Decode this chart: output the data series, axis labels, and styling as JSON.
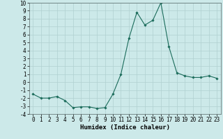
{
  "x": [
    0,
    1,
    2,
    3,
    4,
    5,
    6,
    7,
    8,
    9,
    10,
    11,
    12,
    13,
    14,
    15,
    16,
    17,
    18,
    19,
    20,
    21,
    22,
    23
  ],
  "y": [
    -1.5,
    -2.0,
    -2.0,
    -1.8,
    -2.3,
    -3.2,
    -3.1,
    -3.1,
    -3.3,
    -3.2,
    -1.5,
    1.0,
    5.5,
    8.8,
    7.2,
    7.8,
    10.0,
    4.5,
    1.2,
    0.8,
    0.6,
    0.6,
    0.8,
    0.5
  ],
  "xlabel": "Humidex (Indice chaleur)",
  "xlim": [
    -0.5,
    23.5
  ],
  "ylim": [
    -4,
    10
  ],
  "yticks": [
    -4,
    -3,
    -2,
    -1,
    0,
    1,
    2,
    3,
    4,
    5,
    6,
    7,
    8,
    9,
    10
  ],
  "xticks": [
    0,
    1,
    2,
    3,
    4,
    5,
    6,
    7,
    8,
    9,
    10,
    11,
    12,
    13,
    14,
    15,
    16,
    17,
    18,
    19,
    20,
    21,
    22,
    23
  ],
  "line_color": "#1a6b5a",
  "marker": "D",
  "marker_size": 1.8,
  "bg_color": "#cce9e9",
  "grid_color": "#b0d0d0",
  "xlabel_fontsize": 6.5,
  "tick_fontsize": 5.5
}
